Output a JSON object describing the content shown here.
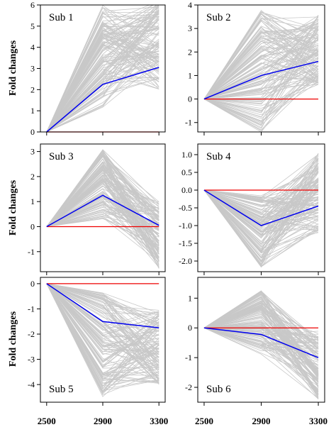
{
  "chart_data": [
    {
      "type": "line",
      "title": "Sub 1",
      "ylabel": "Fold changes",
      "x": [
        2500,
        2900,
        3300
      ],
      "ylim": [
        0,
        6
      ],
      "yticks": [
        0,
        1,
        2,
        3,
        4,
        5,
        6
      ],
      "xticks": [],
      "mean": [
        0,
        2.25,
        3.05
      ],
      "envelope": {
        "min": [
          0,
          1.1,
          2.0
        ],
        "max": [
          0,
          6.0,
          6.2
        ]
      },
      "baseline": 0,
      "colors": {
        "gene": "#c8c8c8",
        "mean": "#0000ee",
        "baseline": "#ee0000"
      }
    },
    {
      "type": "line",
      "title": "Sub 2",
      "ylabel": "",
      "x": [
        2500,
        2900,
        3300
      ],
      "ylim": [
        -1.4,
        4.0
      ],
      "yticks": [
        -1,
        0,
        1,
        2,
        3,
        4
      ],
      "xticks": [],
      "mean": [
        0,
        1.0,
        1.6
      ],
      "envelope": {
        "min": [
          0,
          -1.45,
          0.6
        ],
        "max": [
          0,
          3.8,
          3.6
        ]
      },
      "baseline": 0,
      "colors": {
        "gene": "#c8c8c8",
        "mean": "#0000ee",
        "baseline": "#ee0000"
      }
    },
    {
      "type": "line",
      "title": "Sub 3",
      "ylabel": "Fold changes",
      "x": [
        2500,
        2900,
        3300
      ],
      "ylim": [
        -1.8,
        3.3
      ],
      "yticks": [
        -1,
        0,
        1,
        2,
        3
      ],
      "xticks": [],
      "mean": [
        0,
        1.25,
        0.05
      ],
      "envelope": {
        "min": [
          0,
          0.3,
          -1.7
        ],
        "max": [
          0,
          3.1,
          1.0
        ]
      },
      "baseline": 0,
      "colors": {
        "gene": "#c8c8c8",
        "mean": "#0000ee",
        "baseline": "#ee0000"
      }
    },
    {
      "type": "line",
      "title": "Sub 4",
      "ylabel": "",
      "x": [
        2500,
        2900,
        3300
      ],
      "ylim": [
        -2.3,
        1.3
      ],
      "yticks": [
        -2.0,
        -1.5,
        -1.0,
        -0.5,
        0.0,
        0.5,
        1.0
      ],
      "xticks": [],
      "mean": [
        0,
        -1.0,
        -0.45
      ],
      "envelope": {
        "min": [
          0,
          -2.2,
          -1.2
        ],
        "max": [
          0,
          -0.15,
          1.1
        ]
      },
      "baseline": 0,
      "colors": {
        "gene": "#c8c8c8",
        "mean": "#0000ee",
        "baseline": "#ee0000"
      }
    },
    {
      "type": "line",
      "title": "Sub 5",
      "ylabel": "Fold changes",
      "x": [
        2500,
        2900,
        3300
      ],
      "ylim": [
        -4.7,
        0.25
      ],
      "yticks": [
        -4,
        -3,
        -2,
        -1,
        0
      ],
      "xticks": [
        2500,
        2900,
        3300
      ],
      "mean": [
        0,
        -1.5,
        -1.75
      ],
      "envelope": {
        "min": [
          0,
          -4.5,
          -4.0
        ],
        "max": [
          0,
          -0.25,
          -1.0
        ]
      },
      "baseline": 0,
      "colors": {
        "gene": "#c8c8c8",
        "mean": "#0000ee",
        "baseline": "#ee0000"
      }
    },
    {
      "type": "line",
      "title": "Sub 6",
      "ylabel": "",
      "x": [
        2500,
        2900,
        3300
      ],
      "ylim": [
        -2.5,
        1.7
      ],
      "yticks": [
        -2,
        -1,
        0,
        1
      ],
      "xticks": [
        2500,
        2900,
        3300
      ],
      "mean": [
        0,
        -0.22,
        -1.0
      ],
      "envelope": {
        "min": [
          0,
          -0.9,
          -2.4
        ],
        "max": [
          0,
          1.25,
          -0.1
        ]
      },
      "baseline": 0,
      "colors": {
        "gene": "#c8c8c8",
        "mean": "#0000ee",
        "baseline": "#ee0000"
      }
    }
  ]
}
